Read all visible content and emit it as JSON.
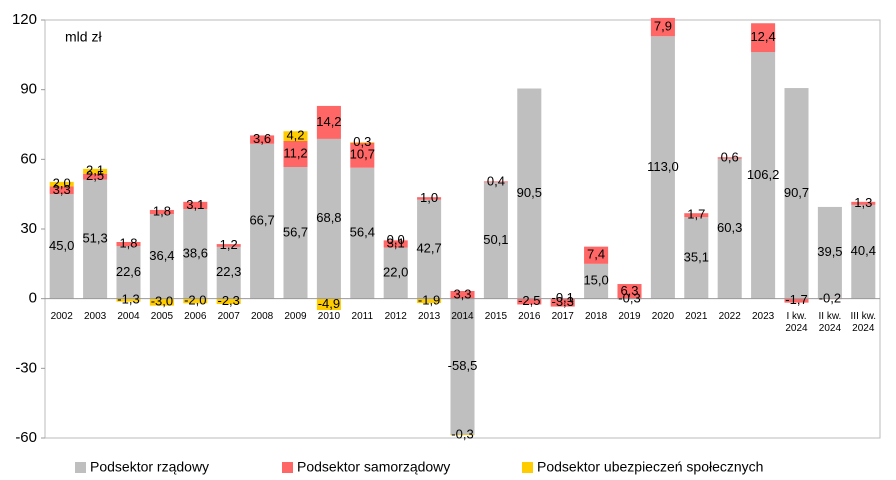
{
  "chart_data": {
    "type": "stacked_bar",
    "annotation": "mld zł",
    "categories": [
      "2002",
      "2003",
      "2004",
      "2005",
      "2006",
      "2007",
      "2008",
      "2009",
      "2010",
      "2011",
      "2012",
      "2013",
      "2014",
      "2015",
      "2016",
      "2017",
      "2018",
      "2019",
      "2020",
      "2021",
      "2022",
      "2023",
      "I kw. 2024",
      "II kw. 2024",
      "III kw. 2024"
    ],
    "series": [
      {
        "name": "Podsektor rządowy",
        "color": "#bfbfbf",
        "values": [
          45.0,
          51.3,
          22.6,
          36.4,
          38.6,
          22.3,
          66.7,
          56.7,
          68.8,
          56.4,
          22.0,
          42.7,
          -58.5,
          50.1,
          90.5,
          -0.1,
          15.0,
          -0.3,
          113.0,
          35.1,
          60.3,
          106.2,
          90.7,
          39.5,
          40.4
        ],
        "value_labels": [
          "45,0",
          "51,3",
          "22,6",
          "36,4",
          "38,6",
          "22,3",
          "66,7",
          "56,7",
          "68,8",
          "56,4",
          "22,0",
          "42,7",
          "-58,5",
          "50,1",
          "90,5",
          "-0,1",
          "15,0",
          "-0,3",
          "113,0",
          "35,1",
          "60,3",
          "106,2",
          "90,7",
          "39,5",
          "40,4"
        ]
      },
      {
        "name": "Podsektor samorządowy",
        "color": "#ff6666",
        "values": [
          3.3,
          2.5,
          1.8,
          1.8,
          3.1,
          1.2,
          3.6,
          11.2,
          14.2,
          10.7,
          3.1,
          1.0,
          3.3,
          0.4,
          -2.5,
          -3.3,
          7.4,
          6.3,
          7.9,
          1.7,
          0.6,
          12.4,
          -1.7,
          -0.2,
          1.3
        ],
        "value_labels": [
          "3,3",
          "2,5",
          "1,8",
          "1,8",
          "3,1",
          "1,2",
          "3,6",
          "11,2",
          "14,2",
          "10,7",
          "3,1",
          "1,0",
          "3,3",
          "0,4",
          "-2,5",
          "-3,3",
          "7,4",
          "6,3",
          "7,9",
          "1,7",
          "0,6",
          "12,4",
          "-1,7",
          "-0,2",
          "1,3"
        ]
      },
      {
        "name": "Podsektor ubezpieczeń społecznych",
        "color": "#ffcc00",
        "values": [
          2.0,
          2.1,
          -1.3,
          -3.0,
          -2.0,
          -2.3,
          null,
          4.2,
          -4.9,
          0.3,
          0.0,
          -1.9,
          -0.3,
          null,
          null,
          null,
          null,
          null,
          null,
          null,
          null,
          null,
          null,
          null,
          null
        ],
        "value_labels": [
          "2,0",
          "2,1",
          "-1,3",
          "-3,0",
          "-2,0",
          "-2,3",
          null,
          "4,2",
          "-4,9",
          "0,3",
          "0,0",
          "-1,9",
          "-0,3",
          null,
          null,
          null,
          null,
          null,
          null,
          null,
          null,
          null,
          null,
          null,
          null
        ]
      }
    ],
    "ylim": [
      -60,
      120
    ],
    "yticks": [
      -60,
      -30,
      0,
      30,
      60,
      90,
      120
    ],
    "legend": "bottom"
  }
}
